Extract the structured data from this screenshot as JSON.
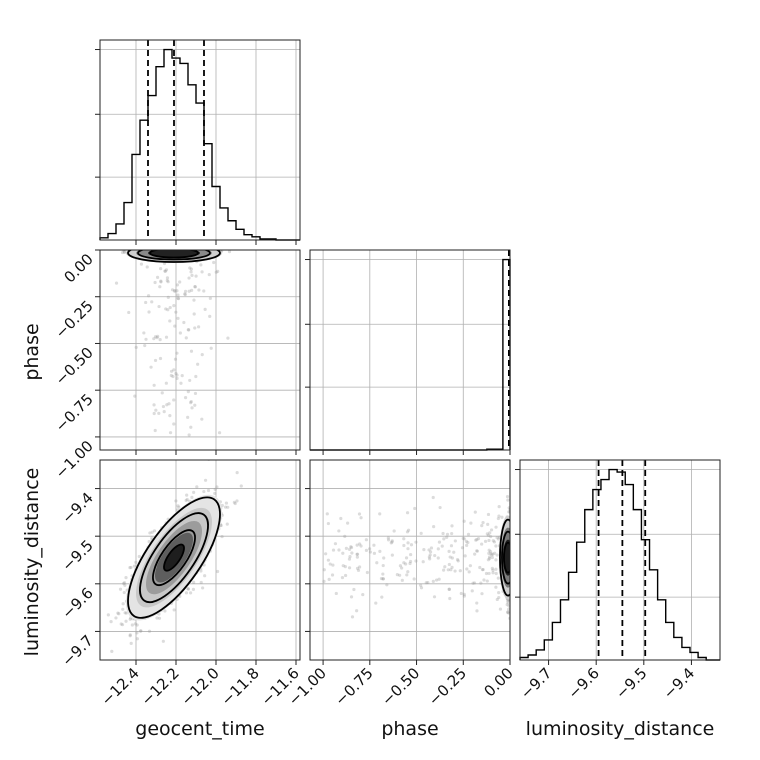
{
  "chart_data": {
    "type": "corner",
    "parameters": [
      {
        "name": "geocent_time",
        "label": "geocent_time",
        "range": [
          -12.58,
          -11.58
        ],
        "ticks": [
          -12.4,
          -12.2,
          -12.0,
          -11.8,
          -11.6
        ],
        "tick_labels": [
          "−12.4",
          "−12.2",
          "−12.0",
          "−11.8",
          "−11.6"
        ],
        "quantiles": [
          -12.34,
          -12.21,
          -12.06
        ],
        "median": -12.21,
        "std": 0.1
      },
      {
        "name": "phase",
        "label": "phase",
        "range": [
          -1.07,
          0.0
        ],
        "ticks": [
          -1.0,
          -0.75,
          -0.5,
          -0.25,
          0.0
        ],
        "tick_labels": [
          "−1.00",
          "−0.75",
          "−0.50",
          "−0.25",
          "0.00"
        ],
        "quantiles": [
          -0.002,
          -0.001,
          0.0
        ]
      },
      {
        "name": "luminosity_distance",
        "label": "luminosity_distance",
        "range": [
          -9.76,
          -9.34
        ],
        "ticks": [
          -9.7,
          -9.6,
          -9.5,
          -9.4
        ],
        "tick_labels": [
          "−9.7",
          "−9.6",
          "−9.5",
          "−9.4"
        ],
        "quantiles": [
          -9.595,
          -9.545,
          -9.497
        ],
        "median": -9.545,
        "std": 0.055
      }
    ],
    "histograms": {
      "geocent_time": {
        "bin_edges": [
          -12.58,
          -12.54,
          -12.5,
          -12.46,
          -12.42,
          -12.38,
          -12.34,
          -12.3,
          -12.26,
          -12.22,
          -12.18,
          -12.14,
          -12.1,
          -12.06,
          -12.02,
          -11.98,
          -11.94,
          -11.9,
          -11.86,
          -11.82,
          -11.78,
          -11.74,
          -11.7,
          -11.66,
          -11.62,
          -11.58
        ],
        "counts": [
          2,
          6,
          15,
          35,
          80,
          112,
          135,
          162,
          178,
          170,
          165,
          145,
          128,
          90,
          50,
          30,
          18,
          10,
          5,
          3,
          1,
          1,
          0,
          0,
          0
        ]
      },
      "phase": {
        "bin_edges": [
          -1.07,
          -1.027,
          -0.984,
          -0.941,
          -0.898,
          -0.855,
          -0.812,
          -0.769,
          -0.726,
          -0.683,
          -0.64,
          -0.597,
          -0.554,
          -0.511,
          -0.468,
          -0.425,
          -0.382,
          -0.339,
          -0.296,
          -0.253,
          -0.21,
          -0.167,
          -0.124,
          -0.081,
          -0.038,
          0.0
        ],
        "counts": [
          0,
          0,
          0,
          0,
          0,
          0,
          0,
          0,
          0,
          0,
          0,
          0,
          0,
          0,
          0,
          0,
          0,
          0,
          0,
          0,
          0,
          0,
          0.004,
          0.004,
          1.0
        ]
      },
      "luminosity_distance": {
        "bin_edges": [
          -9.76,
          -9.743,
          -9.726,
          -9.709,
          -9.692,
          -9.675,
          -9.658,
          -9.641,
          -9.624,
          -9.607,
          -9.59,
          -9.573,
          -9.556,
          -9.539,
          -9.522,
          -9.505,
          -9.488,
          -9.471,
          -9.454,
          -9.437,
          -9.42,
          -9.403,
          -9.386,
          -9.369,
          -9.352,
          -9.34
        ],
        "counts": [
          1,
          2,
          4,
          8,
          15,
          24,
          35,
          47,
          60,
          68,
          72,
          76,
          75,
          70,
          60,
          48,
          36,
          24,
          15,
          9,
          5,
          3,
          1,
          0,
          0
        ]
      }
    },
    "joint": {
      "phase_vs_geocent_time": {
        "correlation": 0.0,
        "phase_mode": 0.0
      },
      "luminosity_distance_vs_geocent_time": {
        "correlation": 0.72
      },
      "luminosity_distance_vs_phase": {
        "correlation": 0.0,
        "phase_mode": 0.0
      }
    },
    "contour_levels": [
      0.118,
      0.393,
      0.675,
      0.864
    ],
    "grid": true,
    "title": ""
  }
}
